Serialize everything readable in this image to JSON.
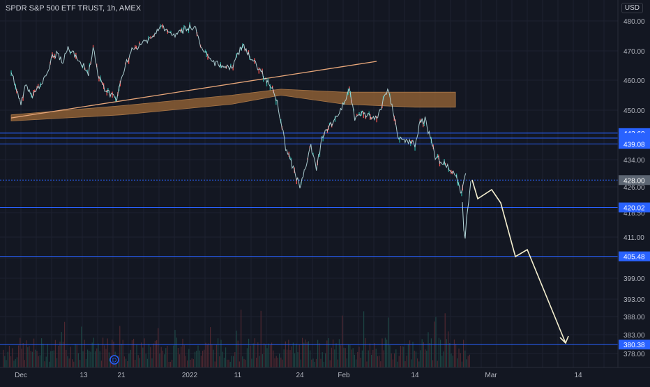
{
  "header": {
    "symbol_name": "SPDR S&P 500 ETF TRUST",
    "interval": "1h",
    "exchange": "AMEX",
    "currency": "USD"
  },
  "colors": {
    "background": "#131722",
    "grid": "#1e2230",
    "price_up": "#26a69a",
    "price_down": "#ef5350",
    "price_wick": "#b9dde0",
    "hline": "#2962ff",
    "trendline": "#e8a77a",
    "band_fill": "#8b5e34",
    "projection": "#f5f0d0",
    "axis_text": "#b2b5be",
    "label_bg": "#2962ff",
    "label_gray_bg": "#5d6673"
  },
  "chart_data": {
    "type": "line",
    "title": "SPDR S&P 500 ETF TRUST, 1h, AMEX",
    "y_axis": {
      "ticks": [
        480.0,
        470.0,
        460.0,
        450.0,
        434.0,
        426.0,
        418.5,
        411.0,
        405.0,
        399.0,
        393.0,
        388.0,
        383.0,
        378.0
      ],
      "tick_labels": [
        "480.00",
        "470.00",
        "460.00",
        "450.00",
        "434.00",
        "426.00",
        "418.50",
        "411.00",
        "",
        "399.00",
        "393.00",
        "388.00",
        "383.00",
        "378.00"
      ],
      "range": [
        376,
        484
      ],
      "currency": "USD"
    },
    "x_axis": {
      "tick_labels": [
        "Dec",
        "13",
        "21",
        "2022",
        "11",
        "24",
        "Feb",
        "14",
        "Mar",
        "14"
      ],
      "dates": [
        "2021-12-01",
        "2021-12-13",
        "2021-12-21",
        "2022-01-03",
        "2022-01-11",
        "2022-01-24",
        "2022-02-01",
        "2022-02-14",
        "2022-03-01",
        "2022-03-14"
      ]
    },
    "series": [
      {
        "kind": "price",
        "x": [
          "2021-11-30",
          "2021-12-01",
          "2021-12-02",
          "2021-12-03",
          "2021-12-06",
          "2021-12-07",
          "2021-12-08",
          "2021-12-09",
          "2021-12-10",
          "2021-12-13",
          "2021-12-14",
          "2021-12-15",
          "2021-12-16",
          "2021-12-17",
          "2021-12-20",
          "2021-12-21",
          "2021-12-22",
          "2021-12-23",
          "2021-12-27",
          "2021-12-28",
          "2021-12-29",
          "2021-12-30",
          "2021-12-31",
          "2022-01-03",
          "2022-01-04",
          "2022-01-05",
          "2022-01-06",
          "2022-01-07",
          "2022-01-10",
          "2022-01-11",
          "2022-01-12",
          "2022-01-13",
          "2022-01-14",
          "2022-01-18",
          "2022-01-19",
          "2022-01-20",
          "2022-01-21",
          "2022-01-24",
          "2022-01-25",
          "2022-01-26",
          "2022-01-27",
          "2022-01-28",
          "2022-01-31",
          "2022-02-01",
          "2022-02-02",
          "2022-02-03",
          "2022-02-04",
          "2022-02-07",
          "2022-02-08",
          "2022-02-09",
          "2022-02-10",
          "2022-02-11",
          "2022-02-14",
          "2022-02-15",
          "2022-02-16",
          "2022-02-17",
          "2022-02-18",
          "2022-02-22",
          "2022-02-23",
          "2022-02-24"
        ],
        "y": [
          463,
          452,
          459,
          454,
          462,
          468,
          469,
          466,
          471,
          465,
          462,
          471,
          462,
          458,
          453,
          461,
          466,
          470,
          475,
          477,
          478,
          476,
          475,
          478,
          477,
          470,
          468,
          466,
          464,
          469,
          472,
          469,
          467,
          458,
          454,
          447,
          438,
          426,
          432,
          438,
          431,
          441,
          449,
          452,
          457,
          447,
          449,
          447,
          452,
          457,
          450,
          441,
          439,
          446,
          447,
          441,
          435,
          430,
          424,
          430
        ]
      },
      {
        "kind": "projection",
        "x": [
          "2022-02-24",
          "2022-02-25",
          "2022-02-28",
          "2022-03-01",
          "2022-03-04",
          "2022-03-07",
          "2022-03-15"
        ],
        "y": [
          428,
          422,
          425,
          420,
          405.5,
          407.5,
          380.4
        ]
      }
    ],
    "horizontal_levels": [
      442.6,
      441.0,
      439.08,
      428.0,
      420.02,
      405.48,
      380.38
    ],
    "level_labels": [
      "442.60",
      "",
      "439.08",
      "428.00",
      "420.02",
      "405.48",
      "380.38"
    ],
    "highlighted_level": "428.00",
    "trendline": {
      "x": [
        "2021-11-30",
        "2022-02-01"
      ],
      "y": [
        447.5,
        465.5
      ]
    },
    "moving_average_band": {
      "x": [
        "2021-11-30",
        "2021-12-21",
        "2022-01-10",
        "2022-01-20",
        "2022-02-01",
        "2022-02-14",
        "2022-02-22"
      ],
      "upper": [
        448.5,
        451.5,
        455,
        457,
        456,
        456,
        456
      ],
      "lower": [
        446.5,
        448.5,
        452,
        455,
        452,
        451,
        451
      ]
    },
    "volume": {
      "note": "",
      "max_relative": 1.0
    },
    "grid": true,
    "events": [
      {
        "label": "D",
        "date": "2021-12-21"
      }
    ]
  }
}
